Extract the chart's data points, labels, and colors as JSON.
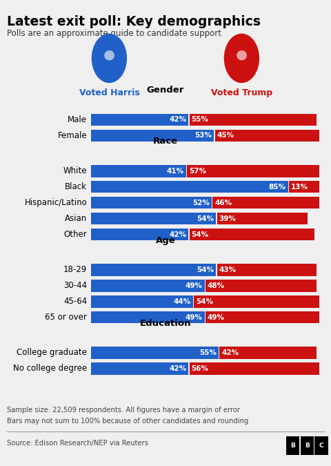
{
  "title": "Latest exit poll: Key demographics",
  "subtitle": "Polls are an approximate guide to candidate support",
  "harris_color": "#2060C8",
  "trump_color": "#CC1111",
  "harris_label": "Voted Harris",
  "trump_label": "Voted Trump",
  "bg_color": "#EFEFEF",
  "sections": [
    {
      "header": "Gender",
      "rows": [
        {
          "label": "Male",
          "harris": 42,
          "trump": 55
        },
        {
          "label": "Female",
          "harris": 53,
          "trump": 45
        }
      ]
    },
    {
      "header": "Race",
      "rows": [
        {
          "label": "White",
          "harris": 41,
          "trump": 57
        },
        {
          "label": "Black",
          "harris": 85,
          "trump": 13
        },
        {
          "label": "Hispanic/Latino",
          "harris": 52,
          "trump": 46
        },
        {
          "label": "Asian",
          "harris": 54,
          "trump": 39
        },
        {
          "label": "Other",
          "harris": 42,
          "trump": 54
        }
      ]
    },
    {
      "header": "Age",
      "rows": [
        {
          "label": "18-29",
          "harris": 54,
          "trump": 43
        },
        {
          "label": "30-44",
          "harris": 49,
          "trump": 48
        },
        {
          "label": "45-64",
          "harris": 44,
          "trump": 54
        },
        {
          "label": "65 or over",
          "harris": 49,
          "trump": 49
        }
      ]
    },
    {
      "header": "Education",
      "rows": [
        {
          "label": "College graduate",
          "harris": 55,
          "trump": 42
        },
        {
          "label": "No college degree",
          "harris": 42,
          "trump": 56
        }
      ]
    }
  ],
  "footnote1": "Sample size: 22,509 respondents. All figures have a margin of error",
  "footnote2": "Bars may not sum to 100% because of other candidates and rounding",
  "source": "Source: Edison Research/NEP via Reuters",
  "header_fontsize": 9.5,
  "row_label_fontsize": 8.5,
  "pct_fontsize": 7.5
}
